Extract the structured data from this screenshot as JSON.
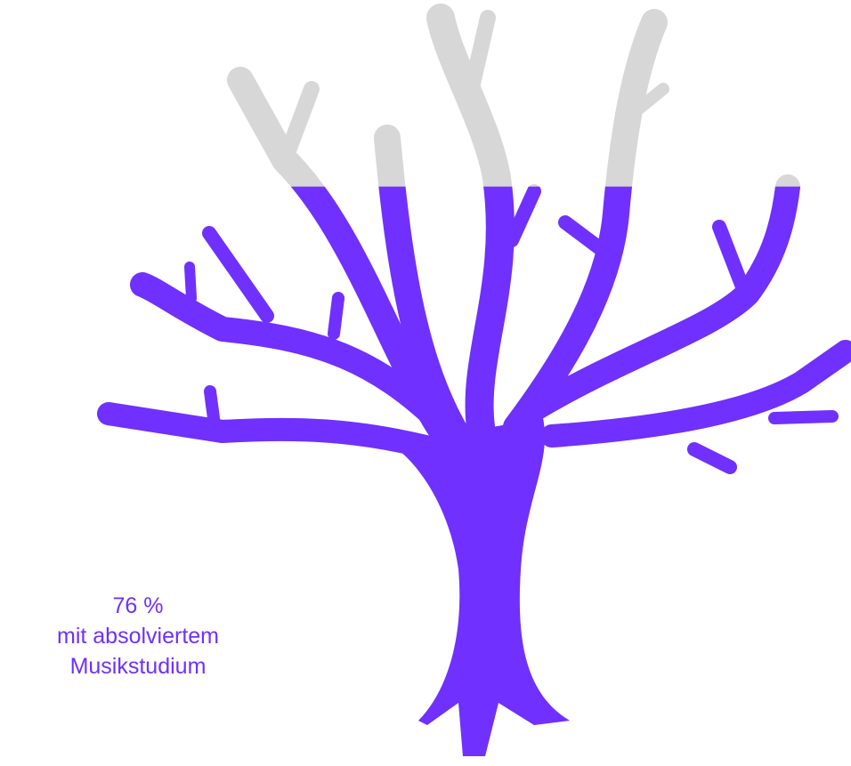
{
  "chart_data": {
    "type": "fill",
    "values": [
      76
    ],
    "value_labels": [
      "76 %"
    ],
    "label": "mit absolviertem Musikstudium",
    "ylim": [
      0,
      100
    ],
    "color": "#7030ff",
    "empty_color": "#d6d7d6"
  }
}
